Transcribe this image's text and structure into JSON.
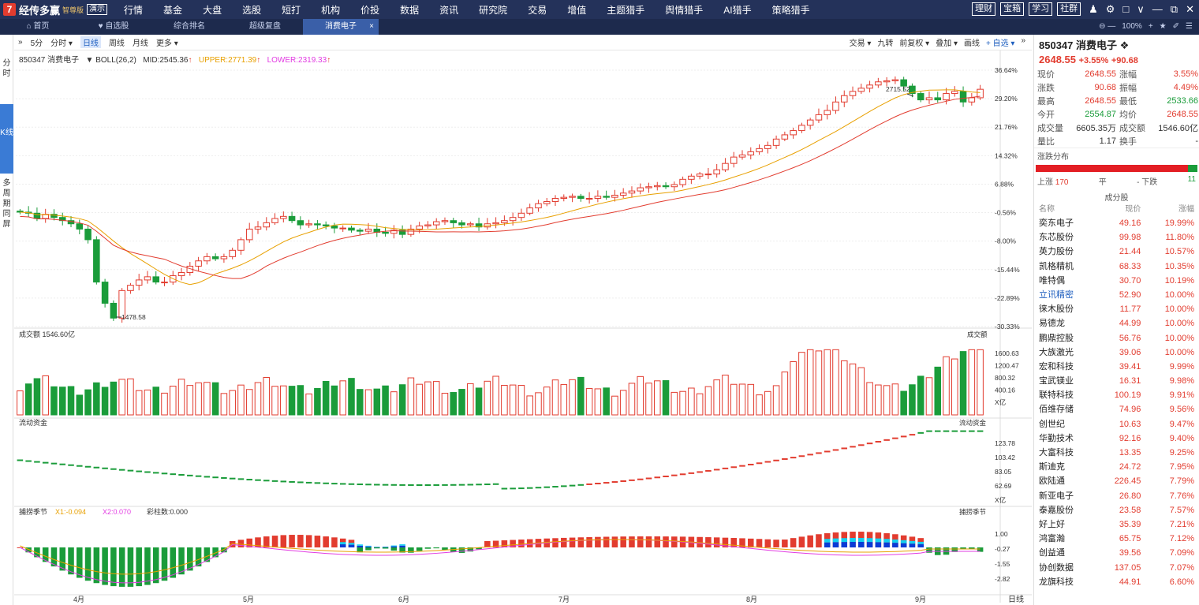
{
  "app": {
    "logo_mark": "7",
    "name": "经传多赢",
    "edition": "智尊版",
    "demo": "演示"
  },
  "menu": [
    {
      "label": "行情",
      "dot": false
    },
    {
      "label": "基金",
      "dot": false
    },
    {
      "label": "大盘",
      "dot": false
    },
    {
      "label": "选股",
      "dot": false
    },
    {
      "label": "短打",
      "dot": false
    },
    {
      "label": "机构",
      "dot": false
    },
    {
      "label": "价投",
      "dot": false
    },
    {
      "label": "数据",
      "dot": false
    },
    {
      "label": "资讯",
      "dot": false
    },
    {
      "label": "研究院",
      "dot": true
    },
    {
      "label": "交易",
      "dot": false
    },
    {
      "label": "增值",
      "dot": true
    },
    {
      "label": "主题猎手",
      "dot": false
    },
    {
      "label": "舆情猎手",
      "dot": false
    },
    {
      "label": "AI猎手",
      "dot": false
    },
    {
      "label": "策略猎手",
      "dot": true
    }
  ],
  "top_buttons": [
    "理财",
    "宝箱",
    "学习",
    "社群"
  ],
  "tabs": [
    {
      "label": "首页",
      "icon": "home-icon"
    },
    {
      "label": "自选股",
      "icon": "heart-icon"
    },
    {
      "label": "综合排名"
    },
    {
      "label": "超级复盘"
    },
    {
      "label": "消费电子",
      "active": true,
      "close": "×"
    }
  ],
  "zoom": {
    "label": "100%"
  },
  "side": {
    "fs": "分时",
    "k": "K线",
    "multi": "多周期同屏"
  },
  "toolbar": {
    "items": [
      "5分",
      "分时 ▾",
      "日线",
      "周线",
      "月线",
      "更多 ▾"
    ],
    "active": "日线",
    "right": [
      "交易 ▾",
      "九转",
      "前复权 ▾",
      "叠加 ▾",
      "画线",
      "+ 自选 ▾"
    ]
  },
  "indicator": {
    "code_name": "850347 消费电子",
    "boll": "BOLL(26,2)",
    "mid": "MID:2545.36",
    "upper": "UPPER:2771.39",
    "lower": "LOWER:2319.33"
  },
  "main_axis": [
    "36.64%",
    "29.20%",
    "21.76%",
    "14.32%",
    "6.88%",
    "-0.56%",
    "-8.00%",
    "-15.44%",
    "-22.89%",
    "-30.33%"
  ],
  "annotations": {
    "high": "2715.52",
    "low": "1478.58"
  },
  "volume": {
    "title": "成交额",
    "value": "1546.60亿",
    "right_label": "成交额",
    "axis": [
      "1600.63",
      "1200.47",
      "800.32",
      "400.16",
      "X亿"
    ]
  },
  "flow": {
    "title": "流动资金",
    "right_label": "流动资金",
    "axis": [
      "123.78",
      "103.42",
      "83.05",
      "62.69",
      "X亿"
    ]
  },
  "season": {
    "title": "捕捞季节",
    "x1": "X1:-0.094",
    "x2": "X2:0.070",
    "bars": "彩柱数:0.000",
    "right_label": "捕捞季节",
    "axis": [
      "1.00",
      "-0.27",
      "-1.55",
      "-2.82"
    ]
  },
  "months": [
    "4月",
    "5月",
    "6月",
    "7月",
    "8月",
    "9月"
  ],
  "period_label": "日线",
  "colors": {
    "up": "#e23c2f",
    "down": "#1a9c3a",
    "mid_line": "#e8a000",
    "lower_line": "#e23c2f",
    "menubar": "#24325a"
  },
  "quote": {
    "code": "850347",
    "name": "消费电子",
    "price": "2648.55",
    "chg_pct": "+3.55%",
    "chg": "+90.68",
    "rows": [
      [
        "现价",
        "2648.55",
        "涨幅",
        "3.55%"
      ],
      [
        "涨跌",
        "90.68",
        "振幅",
        "4.49%"
      ],
      [
        "最高",
        "2648.55",
        "最低",
        "2533.66"
      ],
      [
        "今开",
        "2554.87",
        "均价",
        "2648.55"
      ],
      [
        "成交量",
        "6605.35万",
        "成交额",
        "1546.60亿"
      ],
      [
        "量比",
        "1.17",
        "换手",
        "-"
      ]
    ]
  },
  "dist": {
    "title": "涨跌分布",
    "up_label": "上涨",
    "up": "170",
    "flat_label": "平",
    "flat": "-",
    "down_label": "下跌",
    "down": "11"
  },
  "components": {
    "title": "成分股",
    "headers": [
      "名称",
      "现价",
      "涨幅"
    ],
    "rows": [
      {
        "name": "奕东电子",
        "price": "49.16",
        "chg": "19.99%"
      },
      {
        "name": "东芯股份",
        "price": "99.98",
        "chg": "11.80%"
      },
      {
        "name": "英力股份",
        "price": "21.44",
        "chg": "10.57%"
      },
      {
        "name": "凯格精机",
        "price": "68.33",
        "chg": "10.35%"
      },
      {
        "name": "唯特偶",
        "price": "30.70",
        "chg": "10.19%"
      },
      {
        "name": "立讯精密",
        "price": "52.90",
        "chg": "10.00%",
        "hl": true
      },
      {
        "name": "徕木股份",
        "price": "11.77",
        "chg": "10.00%"
      },
      {
        "name": "易德龙",
        "price": "44.99",
        "chg": "10.00%"
      },
      {
        "name": "鹏鼎控股",
        "price": "56.76",
        "chg": "10.00%"
      },
      {
        "name": "大族激光",
        "price": "39.06",
        "chg": "10.00%"
      },
      {
        "name": "宏和科技",
        "price": "39.41",
        "chg": "9.99%"
      },
      {
        "name": "宝武镁业",
        "price": "16.31",
        "chg": "9.98%"
      },
      {
        "name": "联特科技",
        "price": "100.19",
        "chg": "9.91%"
      },
      {
        "name": "佰维存储",
        "price": "74.96",
        "chg": "9.56%"
      },
      {
        "name": "创世纪",
        "price": "10.63",
        "chg": "9.47%"
      },
      {
        "name": "华勤技术",
        "price": "92.16",
        "chg": "9.40%"
      },
      {
        "name": "大富科技",
        "price": "13.35",
        "chg": "9.25%"
      },
      {
        "name": "斯迪克",
        "price": "24.72",
        "chg": "7.95%"
      },
      {
        "name": "欧陆通",
        "price": "226.45",
        "chg": "7.79%"
      },
      {
        "name": "新亚电子",
        "price": "26.80",
        "chg": "7.76%"
      },
      {
        "name": "泰嘉股份",
        "price": "23.58",
        "chg": "7.57%"
      },
      {
        "name": "好上好",
        "price": "35.39",
        "chg": "7.21%"
      },
      {
        "name": "鸿富瀚",
        "price": "65.75",
        "chg": "7.12%"
      },
      {
        "name": "创益通",
        "price": "39.56",
        "chg": "7.09%"
      },
      {
        "name": "协创数据",
        "price": "137.05",
        "chg": "7.07%"
      },
      {
        "name": "龙旗科技",
        "price": "44.91",
        "chg": "6.60%"
      }
    ]
  }
}
